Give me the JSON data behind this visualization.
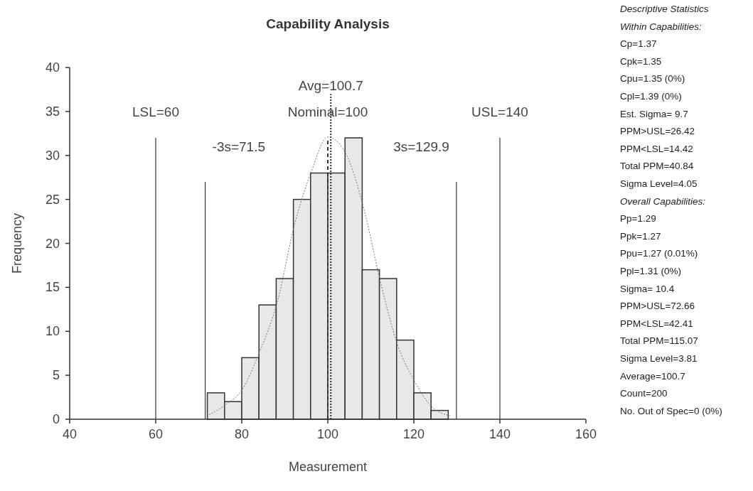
{
  "chart_data": {
    "type": "histogram",
    "title": "Capability Analysis",
    "xlabel": "Measurement",
    "ylabel": "Frequency",
    "bins": [
      72,
      76,
      80,
      84,
      88,
      92,
      96,
      100,
      104,
      108,
      112,
      116,
      120,
      124,
      128
    ],
    "values": [
      3,
      2,
      7,
      13,
      16,
      25,
      28,
      28,
      32,
      17,
      16,
      9,
      3,
      1
    ],
    "color": "#e8e8ea",
    "series": [
      {
        "type": "line",
        "line_style": "dotted",
        "color": "#777777",
        "x": [
          72.4,
          76.4,
          80,
          84,
          88.3,
          92.2,
          96.2,
          100,
          104.4,
          108.4,
          112.3,
          116.2,
          120.2,
          124,
          128.4
        ],
        "values": [
          0.5,
          1.7,
          3.3,
          7.5,
          13.4,
          22,
          28.2,
          32.1,
          30,
          23.9,
          15.5,
          8.5,
          4.3,
          1.5,
          0.4
        ]
      }
    ],
    "xlim": [
      40,
      160
    ],
    "xticks": [
      40,
      60,
      80,
      100,
      120,
      140,
      160
    ],
    "ylim": [
      0,
      40
    ],
    "yticks": [
      0,
      5,
      10,
      15,
      20,
      25,
      30,
      35,
      40
    ],
    "grid": false,
    "ref_lines": [
      {
        "axis": "x",
        "value": 60,
        "label": "LSL=60",
        "line_style": "solid"
      },
      {
        "axis": "x",
        "value": 140,
        "label": "USL=140",
        "line_style": "solid"
      },
      {
        "axis": "x",
        "value": 71.5,
        "label": "-3s=71.5",
        "line_style": "solid"
      },
      {
        "axis": "x",
        "value": 129.9,
        "label": "3s=129.9",
        "line_style": "solid"
      },
      {
        "axis": "x",
        "value": 100,
        "label": "Nominal=100",
        "line_style": "dashed"
      },
      {
        "axis": "x",
        "value": 100.7,
        "label": "Avg=100.7",
        "line_style": "dotted"
      }
    ],
    "annotations": [
      "Descriptive Statistics",
      "Within Capabilities:",
      "Cp=1.37",
      "Cpk=1.35",
      "Cpu=1.35 (0%)",
      "Cpl=1.39 (0%)",
      "Est. Sigma= 9.7",
      "PPM>USL=26.42",
      "PPM<LSL=14.42",
      "Total PPM=40.84",
      "Sigma Level=4.05",
      "Overall Capabilities:",
      "Pp=1.29",
      "Ppk=1.27",
      "Ppu=1.27 (0.01%)",
      "Ppl=1.31 (0%)",
      "Sigma= 10.4",
      "PPM>USL=72.66",
      "PPM<LSL=42.41",
      "Total PPM=115.07",
      "Sigma Level=3.81",
      "Average=100.7",
      "Count=200",
      "No. Out of Spec=0 (0%)"
    ]
  }
}
